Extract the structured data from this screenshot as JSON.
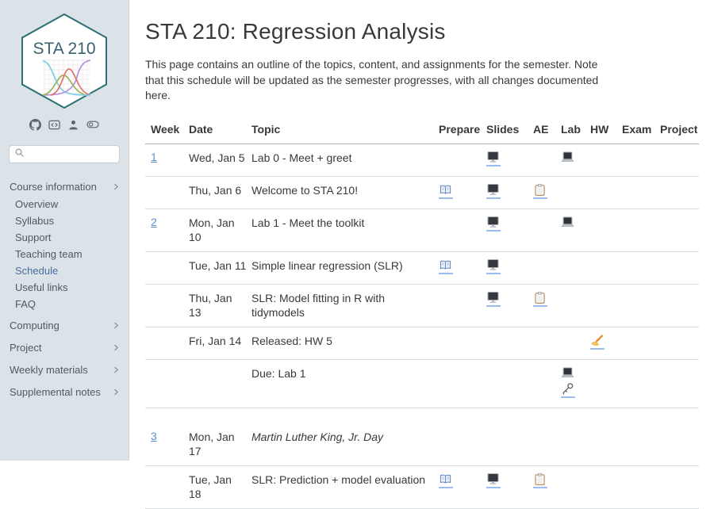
{
  "colors": {
    "sidebar_bg": "#dce3e8",
    "logo_border_teal": "#2a6f73",
    "logo_text": "#3a616e",
    "curve_cyan": "#7cd0e4",
    "curve_purple": "#b792e2",
    "curve_green": "#9db35a",
    "curve_red": "#e2726b",
    "active_nav_blue": "#4a6d9e",
    "link_blue": "#5b8fd4",
    "icon_underline_blue": "#9cbcf0"
  },
  "sidebar": {
    "logo": {
      "title": "STA 210"
    },
    "toolbar_icons": [
      {
        "name": "github"
      },
      {
        "name": "code"
      },
      {
        "name": "user"
      },
      {
        "name": "toggle"
      }
    ],
    "search": {
      "placeholder": "",
      "value": ""
    },
    "nav": [
      {
        "label": "Course information",
        "chevron": true,
        "children": [
          {
            "label": "Overview",
            "active": false
          },
          {
            "label": "Syllabus",
            "active": false
          },
          {
            "label": "Support",
            "active": false
          },
          {
            "label": "Teaching team",
            "active": false
          },
          {
            "label": "Schedule",
            "active": true
          },
          {
            "label": "Useful links",
            "active": false
          },
          {
            "label": "FAQ",
            "active": false
          }
        ]
      },
      {
        "label": "Computing",
        "chevron": true,
        "children": []
      },
      {
        "label": "Project",
        "chevron": true,
        "children": []
      },
      {
        "label": "Weekly materials",
        "chevron": true,
        "children": []
      },
      {
        "label": "Supplemental notes",
        "chevron": true,
        "children": []
      }
    ]
  },
  "main": {
    "title": "STA 210: Regression Analysis",
    "intro": "This page contains an outline of the topics, content, and assignments for the semester. Note that this schedule will be updated as the semester progresses, with all changes documented here.",
    "table": {
      "columns": [
        "Week",
        "Date",
        "Topic",
        "Prepare",
        "Slides",
        "AE",
        "Lab",
        "HW",
        "Exam",
        "Project"
      ],
      "icon_meanings": {
        "book": "prepare-reading-link",
        "desktop": "slides-link",
        "clipboard": "application-exercise-link",
        "laptop": "lab-link",
        "writing-hand": "homework-link",
        "key": "answer-key-link"
      },
      "rows": [
        {
          "week": "1",
          "date": "Wed, Jan 5",
          "topic": "Lab 0 - Meet + greet",
          "italic": false,
          "icons": {
            "prepare": [],
            "slides": [
              "desktop"
            ],
            "ae": [],
            "lab": [
              "laptop"
            ],
            "hw": [],
            "exam": [],
            "project": []
          }
        },
        {
          "week": "",
          "date": "Thu, Jan 6",
          "topic": "Welcome to STA 210!",
          "italic": false,
          "icons": {
            "prepare": [
              "book"
            ],
            "slides": [
              "desktop"
            ],
            "ae": [
              "clipboard"
            ],
            "lab": [],
            "hw": [],
            "exam": [],
            "project": []
          }
        },
        {
          "week": "2",
          "date": "Mon, Jan\n10",
          "topic": "Lab 1 - Meet the toolkit",
          "italic": false,
          "icons": {
            "prepare": [],
            "slides": [
              "desktop"
            ],
            "ae": [],
            "lab": [
              "laptop"
            ],
            "hw": [],
            "exam": [],
            "project": []
          }
        },
        {
          "week": "",
          "date": "Tue, Jan 11",
          "topic": "Simple linear regression (SLR)",
          "italic": false,
          "icons": {
            "prepare": [
              "book"
            ],
            "slides": [
              "desktop"
            ],
            "ae": [],
            "lab": [],
            "hw": [],
            "exam": [],
            "project": []
          }
        },
        {
          "week": "",
          "date": "Thu, Jan\n13",
          "topic": "SLR: Model fitting in R with tidymodels",
          "italic": false,
          "icons": {
            "prepare": [],
            "slides": [
              "desktop"
            ],
            "ae": [
              "clipboard"
            ],
            "lab": [],
            "hw": [],
            "exam": [],
            "project": []
          }
        },
        {
          "week": "",
          "date": "Fri, Jan 14",
          "topic": "Released: HW 5",
          "italic": false,
          "icons": {
            "prepare": [],
            "slides": [],
            "ae": [],
            "lab": [],
            "hw": [
              "writing-hand"
            ],
            "exam": [],
            "project": []
          }
        },
        {
          "week": "",
          "date": "",
          "topic": "Due: Lab 1",
          "italic": false,
          "icons": {
            "prepare": [],
            "slides": [],
            "ae": [],
            "lab": [
              "laptop",
              "key"
            ],
            "hw": [],
            "exam": [],
            "project": []
          }
        },
        {
          "week": "3",
          "date": "Mon, Jan\n17",
          "topic": "Martin Luther King, Jr. Day",
          "italic": true,
          "section_break_before": true,
          "icons": {
            "prepare": [],
            "slides": [],
            "ae": [],
            "lab": [],
            "hw": [],
            "exam": [],
            "project": []
          }
        },
        {
          "week": "",
          "date": "Tue, Jan\n18",
          "topic": "SLR: Prediction + model evaluation",
          "italic": false,
          "icons": {
            "prepare": [
              "book"
            ],
            "slides": [
              "desktop"
            ],
            "ae": [
              "clipboard"
            ],
            "lab": [],
            "hw": [],
            "exam": [],
            "project": []
          }
        }
      ]
    }
  }
}
